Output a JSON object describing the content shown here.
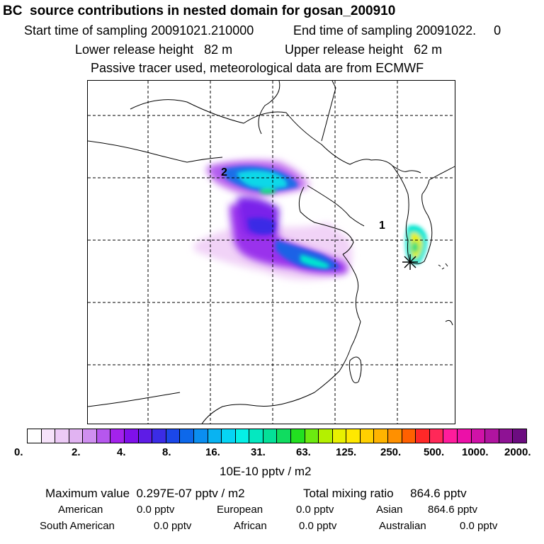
{
  "header": {
    "title": "BC  source contributions in nested domain for gosan_200910",
    "start_sampling": "Start time of sampling 20091021.210000",
    "end_sampling": "End time of sampling 20091022.     0",
    "lower_release": "Lower release height   82 m",
    "upper_release": "Upper release height   62 m",
    "tracer_note": "Passive tracer used, meteorological data are from ECMWF"
  },
  "map": {
    "labels": [
      "2",
      "1"
    ],
    "receptor_marker": "star-marker"
  },
  "colorbar": {
    "colors": [
      "#ffffff",
      "#f6e2fa",
      "#eccaf6",
      "#e1b3f2",
      "#cf8ff0",
      "#b657ee",
      "#a322ec",
      "#7f10ea",
      "#5e1ce6",
      "#3b2ce6",
      "#1b47e8",
      "#0d68ea",
      "#0b8ef0",
      "#09b3f2",
      "#06d4f4",
      "#05f0e6",
      "#04e8c0",
      "#04e098",
      "#10dc60",
      "#22e020",
      "#6cea10",
      "#b4f000",
      "#e8f000",
      "#ffe800",
      "#ffd000",
      "#ffb400",
      "#ff9000",
      "#ff6000",
      "#ff2828",
      "#ff2858",
      "#ff1c9c",
      "#ec10a8",
      "#d012a8",
      "#b014a0",
      "#8e1294",
      "#6c0c80"
    ],
    "ticks": [
      "0.",
      "2.",
      "4.",
      "8.",
      "16.",
      "31.",
      "63.",
      "125.",
      "250.",
      "500.",
      "1000.",
      "2000."
    ],
    "units": "10E-10 pptv / m2"
  },
  "summary": {
    "maximum_value": "Maximum value  0.297E-07 pptv / m2",
    "total_mixing_ratio": "Total mixing ratio     864.6 pptv",
    "regions": [
      {
        "name": "American",
        "value": "0.0 pptv"
      },
      {
        "name": "European",
        "value": "0.0 pptv"
      },
      {
        "name": "Asian",
        "value": "864.6 pptv"
      },
      {
        "name": "South American",
        "value": "0.0 pptv"
      },
      {
        "name": "African",
        "value": "0.0 pptv"
      },
      {
        "name": "Australian",
        "value": "0.0 pptv"
      }
    ]
  }
}
